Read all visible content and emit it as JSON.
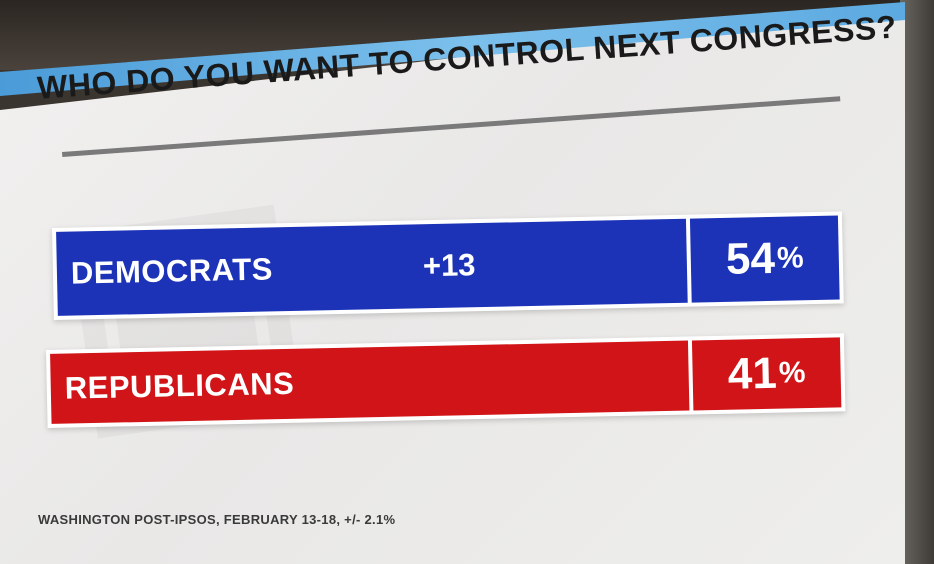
{
  "chart_data": {
    "type": "bar",
    "title": "WHO DO YOU WANT TO CONTROL NEXT CONGRESS?",
    "categories": [
      "DEMOCRATS",
      "REPUBLICANS"
    ],
    "values": [
      54,
      41
    ],
    "value_labels": [
      "54",
      "41"
    ],
    "unit": "%",
    "margin_label": "+13",
    "colors": [
      "#1c33b8",
      "#d01417"
    ],
    "source": "WASHINGTON POST-IPSOS, FEBRUARY 13-18, +/- 2.1%"
  }
}
